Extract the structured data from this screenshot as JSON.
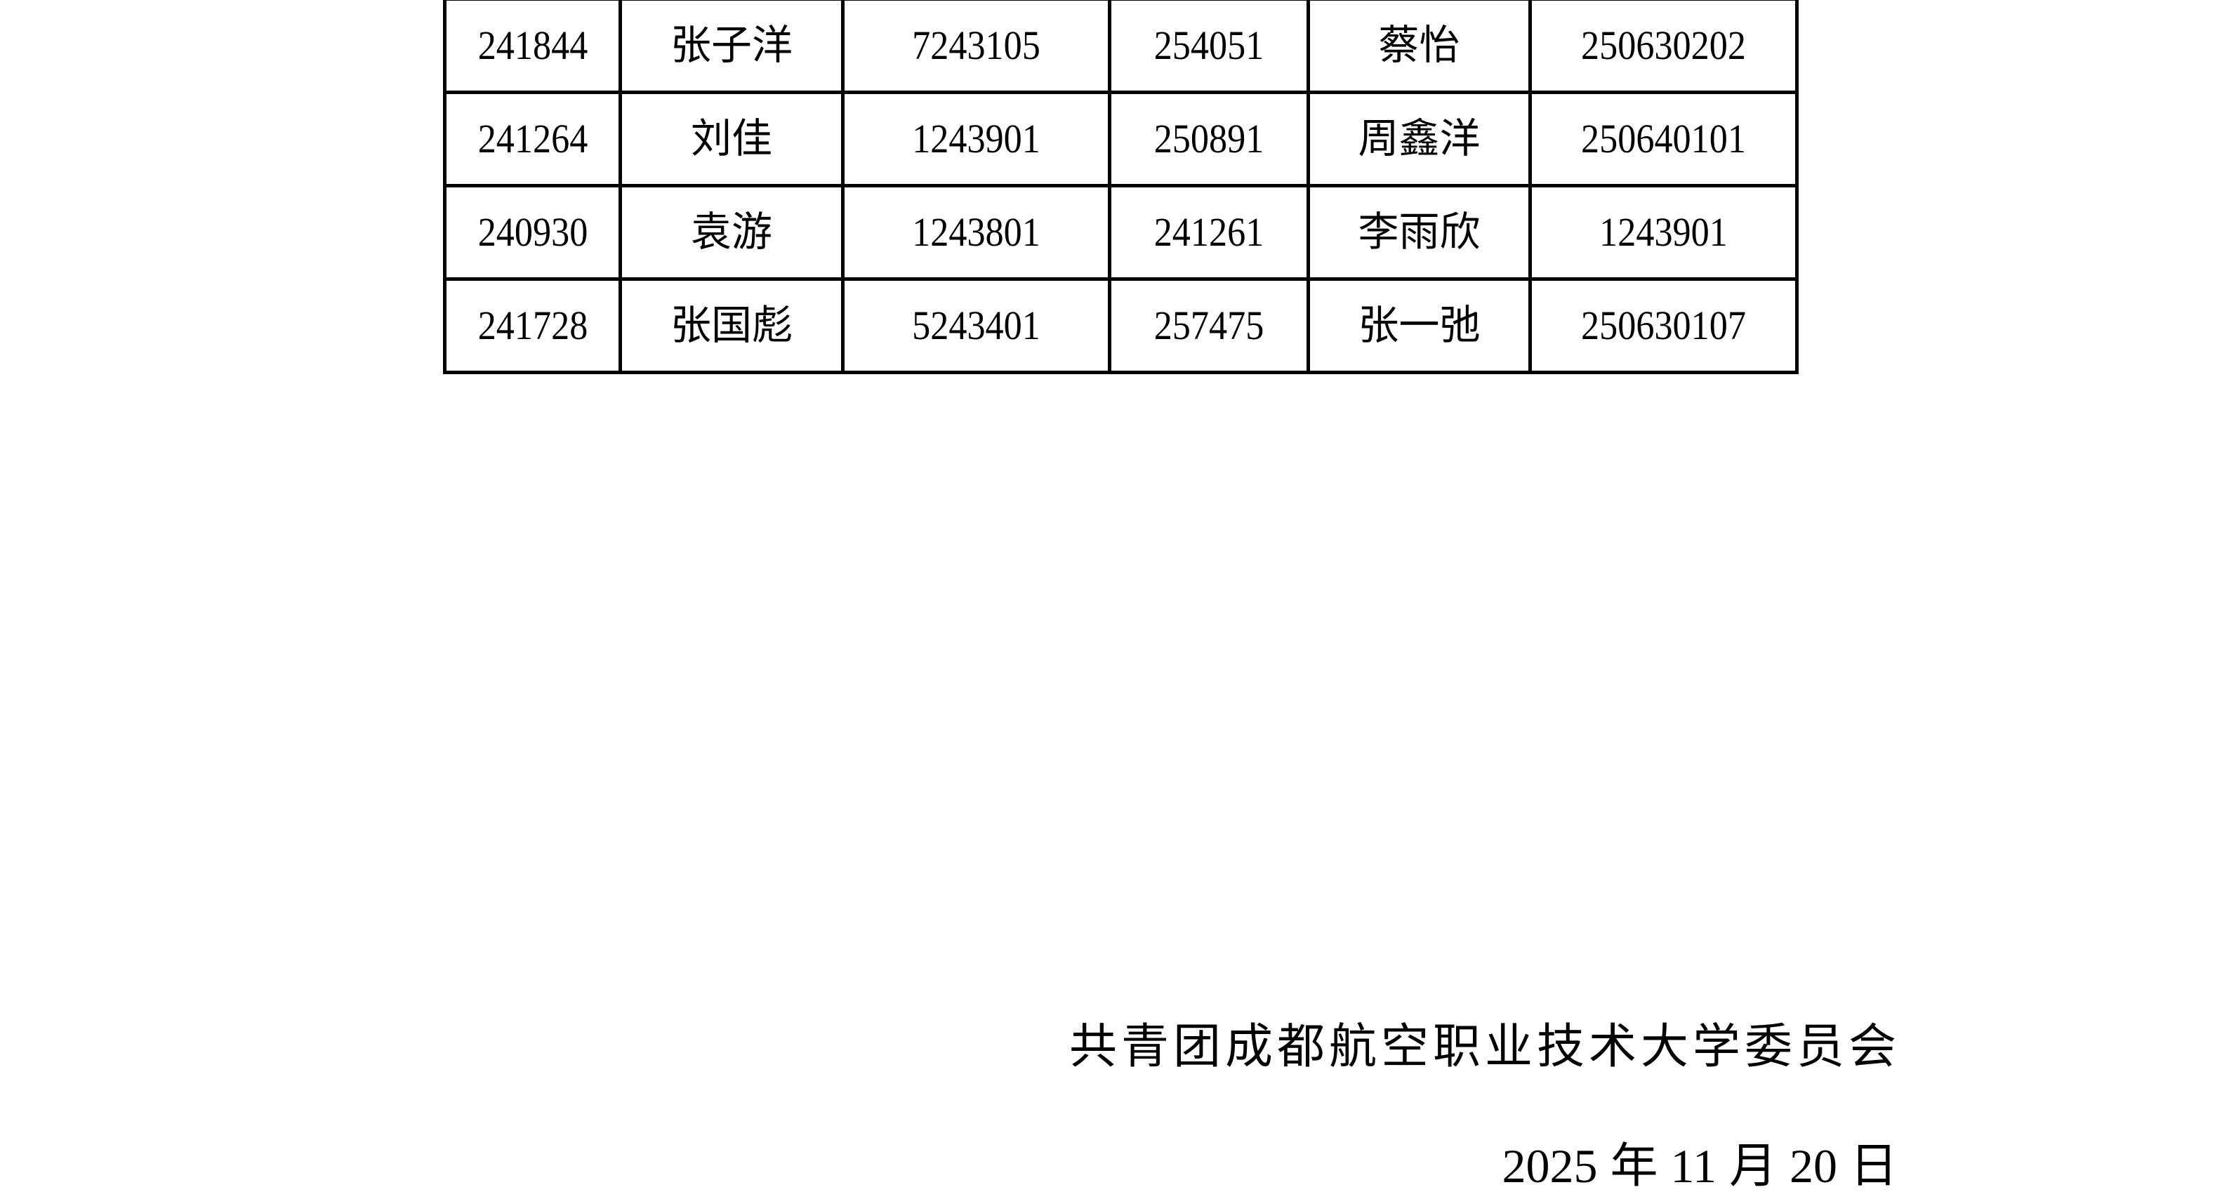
{
  "table": {
    "rows": [
      [
        "241844",
        "张子洋",
        "7243105",
        "254051",
        "蔡怡",
        "250630202"
      ],
      [
        "241264",
        "刘佳",
        "1243901",
        "250891",
        "周鑫洋",
        "250640101"
      ],
      [
        "240930",
        "袁游",
        "1243801",
        "241261",
        "李雨欣",
        "1243901"
      ],
      [
        "241728",
        "张国彪",
        "5243401",
        "257475",
        "张一弛",
        "250630107"
      ]
    ]
  },
  "footer": {
    "organization": "共青团成都航空职业技术大学委员会",
    "date": {
      "year": "2025",
      "year_unit": "年",
      "month": "11",
      "month_unit": "月",
      "day": "20",
      "day_unit": "日"
    }
  }
}
